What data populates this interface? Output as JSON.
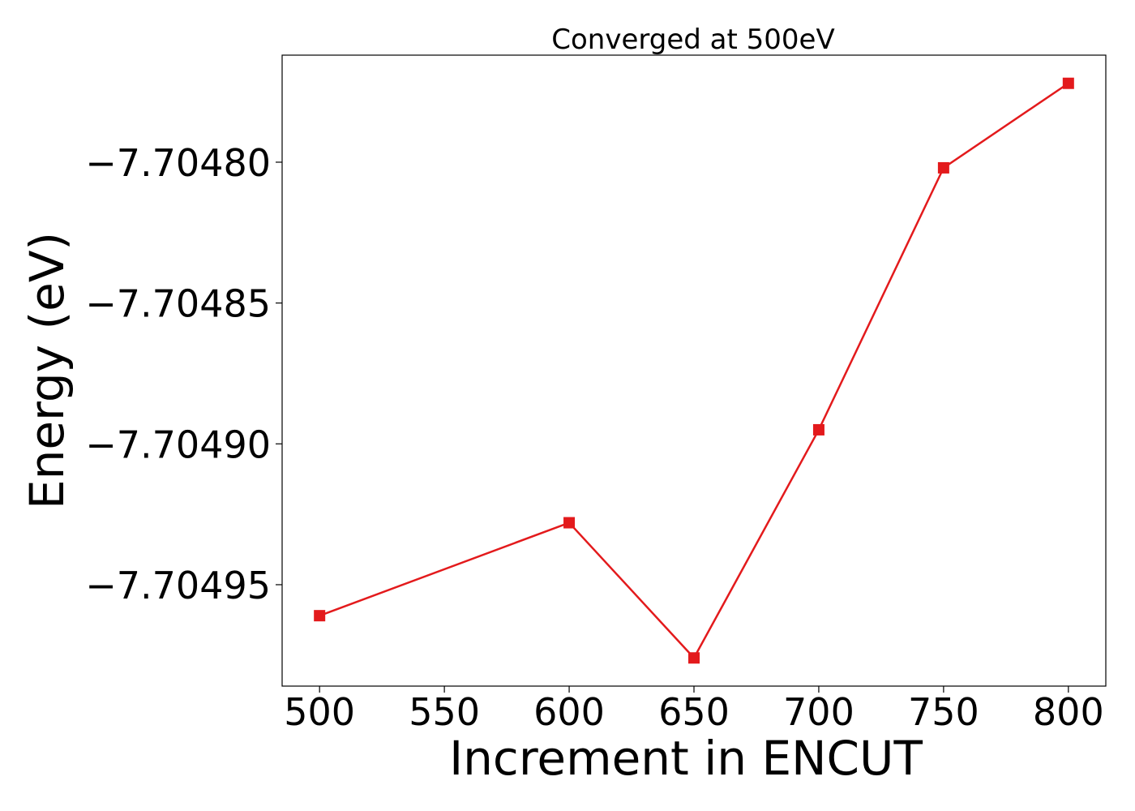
{
  "chart_data": {
    "type": "line",
    "title": "Converged at 500eV",
    "xlabel": "Increment in ENCUT",
    "ylabel": "Energy (eV)",
    "x": [
      500,
      600,
      650,
      700,
      750,
      800
    ],
    "series": [
      {
        "values": [
          -7.704961,
          -7.704928,
          -7.704976,
          -7.704895,
          -7.704802,
          -7.704772
        ],
        "color": "#e31a1c",
        "marker": "square"
      }
    ],
    "xticks": [
      500,
      550,
      600,
      650,
      700,
      750,
      800
    ],
    "xtick_labels": [
      "500",
      "550",
      "600",
      "650",
      "700",
      "750",
      "800"
    ],
    "yticks": [
      -7.7048,
      -7.70485,
      -7.7049,
      -7.70495
    ],
    "ytick_labels": [
      "−7.70480",
      "−7.70485",
      "−7.70490",
      "−7.70495"
    ],
    "xlim": [
      485,
      815
    ],
    "ylim": [
      -7.704986,
      -7.704762
    ],
    "grid": false,
    "legend": "none"
  }
}
